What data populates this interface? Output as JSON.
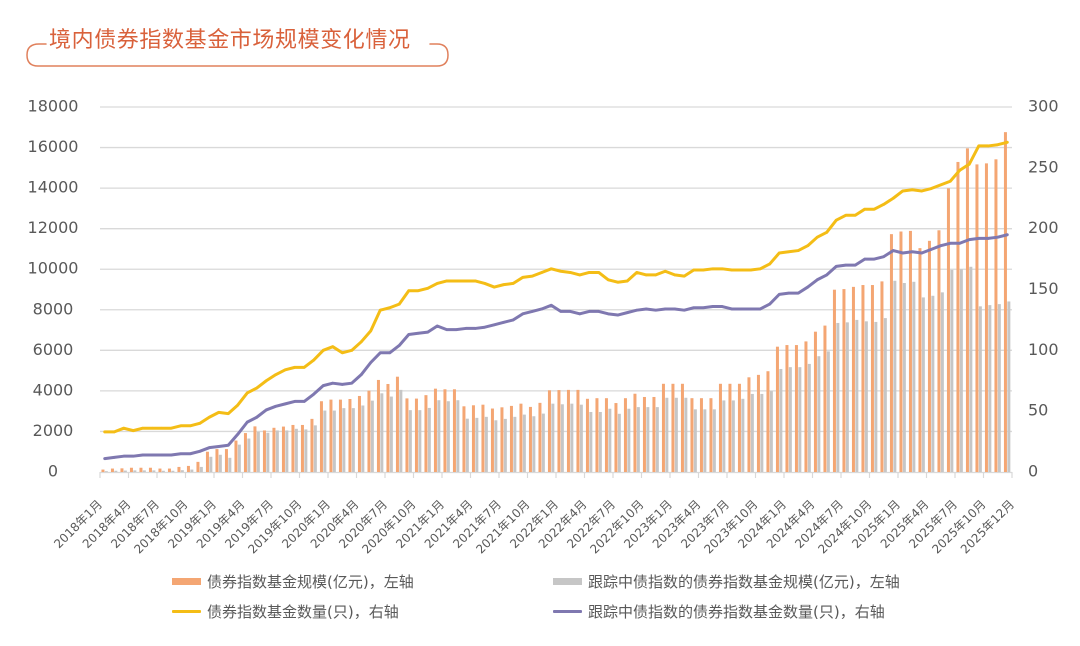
{
  "chart_data": {
    "type": "bar",
    "title": "境内债券指数基金市场规模变化情况",
    "xlabel": "",
    "ylabel_left": "",
    "ylabel_right": "",
    "grid": true,
    "legend_position": "bottom",
    "x_tick_every_months": 3,
    "x_tick_labels": [
      "2018年1月",
      "2018年4月",
      "2018年7月",
      "2018年10月",
      "2019年1月",
      "2019年4月",
      "2019年7月",
      "2019年10月",
      "2020年1月",
      "2020年4月",
      "2020年7月",
      "2020年10月",
      "2021年1月",
      "2021年4月",
      "2021年7月",
      "2021年10月",
      "2022年1月",
      "2022年4月",
      "2022年7月",
      "2022年10月",
      "2023年1月",
      "2023年4月",
      "2023年7月",
      "2023年10月",
      "2024年1月",
      "2024年4月",
      "2024年7月",
      "2024年10月",
      "2025年1月",
      "2025年4月",
      "2025年7月",
      "2025年10月",
      "2025年12月"
    ],
    "y_left": {
      "unit": "亿元",
      "range": [
        0,
        18000
      ],
      "ticks": [
        0,
        2000,
        4000,
        6000,
        8000,
        10000,
        12000,
        14000,
        16000,
        18000
      ]
    },
    "y_right": {
      "unit": "只",
      "range": [
        0,
        300
      ],
      "ticks": [
        0,
        50,
        100,
        150,
        200,
        250,
        300
      ]
    },
    "series": [
      {
        "name": "债券指数基金规模(亿元)，左轴",
        "type": "bar",
        "axis": "left",
        "color": "#f4a673",
        "values": [
          120,
          170,
          180,
          210,
          210,
          210,
          170,
          170,
          250,
          300,
          500,
          1000,
          1130,
          1130,
          1550,
          1920,
          2250,
          2050,
          2180,
          2240,
          2320,
          2320,
          2620,
          3490,
          3570,
          3570,
          3600,
          3750,
          4010,
          4540,
          4340,
          4700,
          3630,
          3620,
          3790,
          4110,
          4080,
          4080,
          3240,
          3290,
          3320,
          3130,
          3190,
          3260,
          3370,
          3210,
          3410,
          4030,
          4040,
          4050,
          4050,
          3610,
          3640,
          3640,
          3400,
          3640,
          3860,
          3700,
          3700,
          4350,
          4350,
          4350,
          3640,
          3640,
          3640,
          4350,
          4350,
          4350,
          4670,
          4790,
          4970,
          6180,
          6260,
          6260,
          6440,
          6920,
          7220,
          8990,
          9020,
          9130,
          9220,
          9220,
          9400,
          11730,
          11860,
          11890,
          11040,
          11400,
          11920,
          13990,
          15290,
          15960,
          15170,
          15220,
          15420,
          16760
        ]
      },
      {
        "name": "跟踪中债指数的债券指数基金规模(亿元)，左轴",
        "type": "bar",
        "axis": "left",
        "color": "#c6c6c6",
        "values": [
          40,
          60,
          70,
          80,
          80,
          80,
          60,
          60,
          90,
          120,
          250,
          750,
          850,
          700,
          1350,
          1650,
          1980,
          1930,
          2050,
          2050,
          2130,
          2100,
          2300,
          3030,
          3030,
          3150,
          3150,
          3280,
          3520,
          3880,
          3720,
          4050,
          3050,
          3050,
          3160,
          3540,
          3490,
          3540,
          2630,
          2670,
          2720,
          2550,
          2620,
          2720,
          2830,
          2750,
          2880,
          3370,
          3340,
          3370,
          3320,
          2960,
          2960,
          3120,
          2870,
          3120,
          3200,
          3200,
          3200,
          3660,
          3660,
          3660,
          3090,
          3090,
          3090,
          3530,
          3530,
          3610,
          3850,
          3850,
          3990,
          5080,
          5170,
          5170,
          5330,
          5710,
          5950,
          7350,
          7380,
          7500,
          7430,
          7400,
          7590,
          9430,
          9320,
          9380,
          8610,
          8690,
          8860,
          9970,
          10000,
          10120,
          8170,
          8230,
          8280,
          8410
        ]
      },
      {
        "name": "债券指数基金数量(只)，右轴",
        "type": "line",
        "axis": "right",
        "color": "#f4bd16",
        "values": [
          33,
          33,
          36,
          34,
          36,
          36,
          36,
          36,
          38,
          38,
          40,
          45,
          49,
          48,
          55,
          65,
          69,
          75,
          80,
          84,
          86,
          86,
          92,
          100,
          103,
          98,
          100,
          107,
          116,
          133,
          135,
          138,
          149,
          149,
          151,
          155,
          157,
          157,
          157,
          157,
          155,
          152,
          154,
          155,
          160,
          161,
          164,
          167,
          165,
          164,
          162,
          164,
          164,
          158,
          156,
          157,
          164,
          162,
          162,
          165,
          162,
          161,
          166,
          166,
          167,
          167,
          166,
          166,
          166,
          167,
          171,
          180,
          181,
          182,
          186,
          193,
          197,
          207,
          211,
          211,
          216,
          216,
          220,
          225,
          231,
          232,
          231,
          233,
          236,
          239,
          248,
          253,
          268,
          268,
          269,
          271
        ]
      },
      {
        "name": "跟踪中债指数的债券指数基金数量(只)，右轴",
        "type": "line",
        "axis": "right",
        "color": "#7f78b0",
        "values": [
          11,
          12,
          13,
          13,
          14,
          14,
          14,
          14,
          15,
          15,
          17,
          20,
          21,
          22,
          31,
          41,
          45,
          51,
          54,
          56,
          58,
          58,
          64,
          71,
          73,
          72,
          73,
          80,
          90,
          98,
          98,
          104,
          113,
          114,
          115,
          120,
          117,
          117,
          118,
          118,
          119,
          121,
          123,
          125,
          130,
          132,
          134,
          137,
          132,
          132,
          130,
          132,
          132,
          130,
          129,
          131,
          133,
          134,
          133,
          134,
          134,
          133,
          135,
          135,
          136,
          136,
          134,
          134,
          134,
          134,
          138,
          146,
          147,
          147,
          152,
          158,
          162,
          169,
          170,
          170,
          175,
          175,
          177,
          182,
          180,
          181,
          180,
          183,
          186,
          188,
          188,
          191,
          192,
          192,
          193,
          195
        ]
      }
    ]
  },
  "colors": {
    "title": "#d9613b",
    "title_bracket": "#e0805c",
    "grid": "#d9d9d9",
    "axis_text": "#595959"
  }
}
